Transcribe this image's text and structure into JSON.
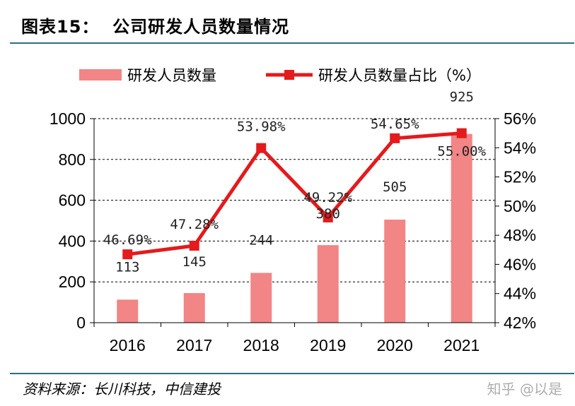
{
  "header": {
    "title": "图表15：  公司研发人员数量情况"
  },
  "footer": {
    "source": "资料来源：长川科技，中信建投",
    "watermark": "知乎 @以是"
  },
  "colors": {
    "bar": "#f28585",
    "line": "#e41a1c",
    "rule": "#2d6f80"
  },
  "chart_data": {
    "type": "bar+line",
    "categories": [
      "2016",
      "2017",
      "2018",
      "2019",
      "2020",
      "2021"
    ],
    "series": [
      {
        "name": "研发人员数量",
        "type": "bar",
        "axis": "left",
        "values": [
          113,
          145,
          244,
          380,
          505,
          925
        ],
        "labels": [
          "113",
          "145",
          "244",
          "380",
          "505",
          "925"
        ]
      },
      {
        "name": "研发人员数量占比（%）",
        "type": "line",
        "axis": "right",
        "values": [
          46.69,
          47.28,
          53.98,
          49.22,
          54.65,
          55.0
        ],
        "labels": [
          "46.69%",
          "47.28%",
          "53.98%",
          "49.22%",
          "54.65%",
          "55.00%"
        ]
      }
    ],
    "y_left": {
      "min": 0,
      "max": 1000,
      "ticks": [
        "0",
        "200",
        "400",
        "600",
        "800",
        "1000"
      ]
    },
    "y_right": {
      "min": 42,
      "max": 56,
      "ticks": [
        "42%",
        "44%",
        "46%",
        "48%",
        "50%",
        "52%",
        "54%",
        "56%"
      ]
    },
    "grid": "horizontal dashed",
    "legend": "top"
  }
}
